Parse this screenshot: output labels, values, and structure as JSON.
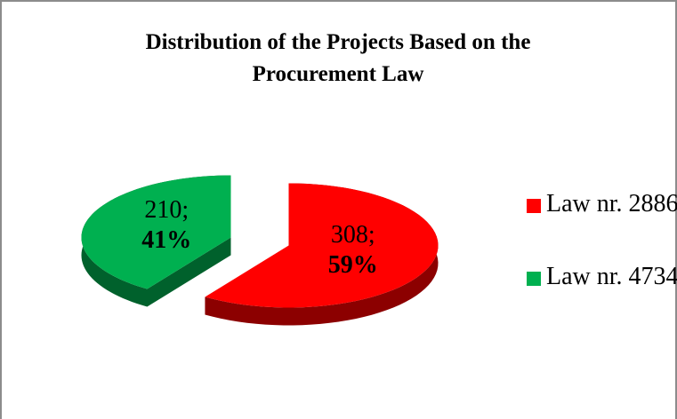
{
  "chart_data": {
    "type": "pie",
    "title": "Distribution of the Projects Based on the Procurement Law",
    "series": [
      {
        "name": "Law nr. 2886",
        "color": "#ff0000",
        "values": [
          308
        ]
      },
      {
        "name": "Law nr. 4734",
        "color": "#00b050",
        "values": [
          210
        ]
      }
    ],
    "value_labels": [
      "308;",
      "210;"
    ],
    "percent_labels": [
      "59%",
      "41%"
    ],
    "legend": "right",
    "exploded": true,
    "three_d": true
  }
}
